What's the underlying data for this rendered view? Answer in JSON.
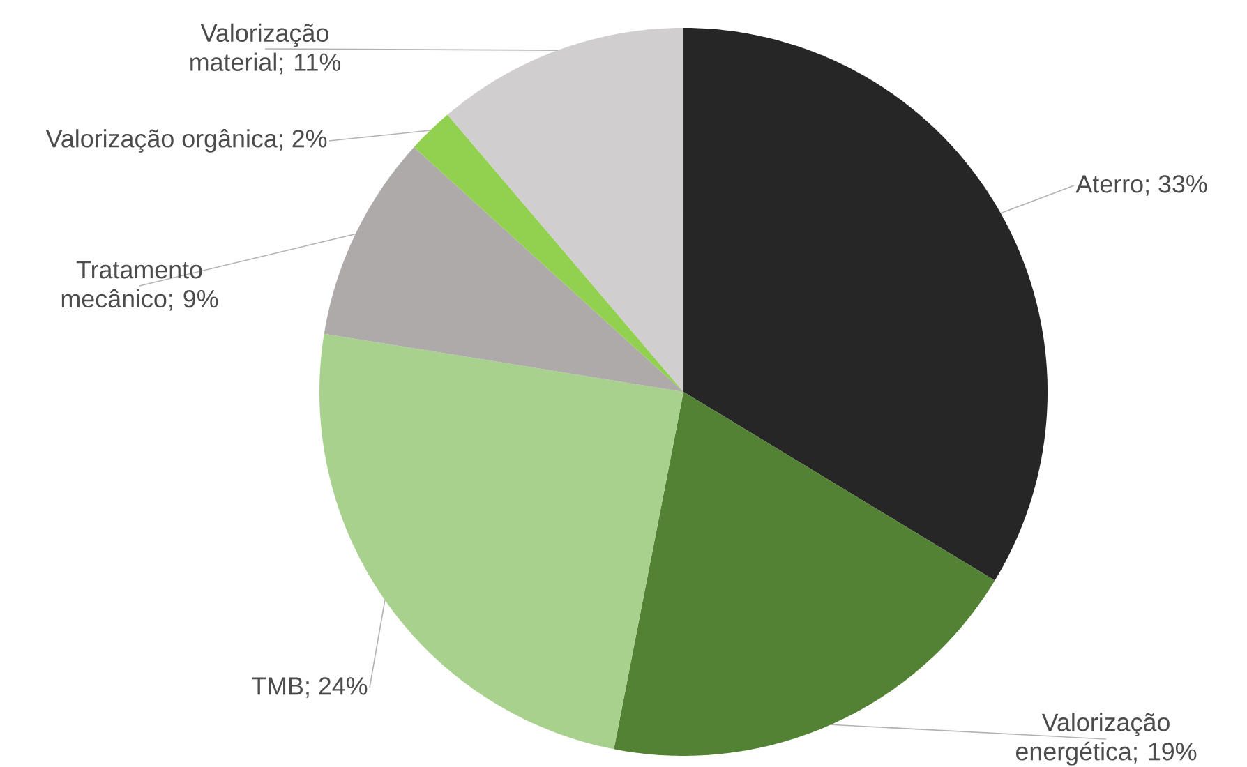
{
  "chart_data": {
    "type": "pie",
    "categories": [
      "Aterro",
      "Valorização energética",
      "TMB",
      "Tratamento mecânico",
      "Valorização orgânica",
      "Valorização material"
    ],
    "values": [
      33,
      19,
      24,
      9,
      2,
      11
    ],
    "value_labels": [
      "; 33%",
      "; 19%",
      "; 24%",
      "; 9%",
      "; 2%",
      "; 11%"
    ],
    "colors": [
      "#262626",
      "#548235",
      "#a9d18e",
      "#aeaaaa",
      "#92d050",
      "#d0cece"
    ]
  }
}
